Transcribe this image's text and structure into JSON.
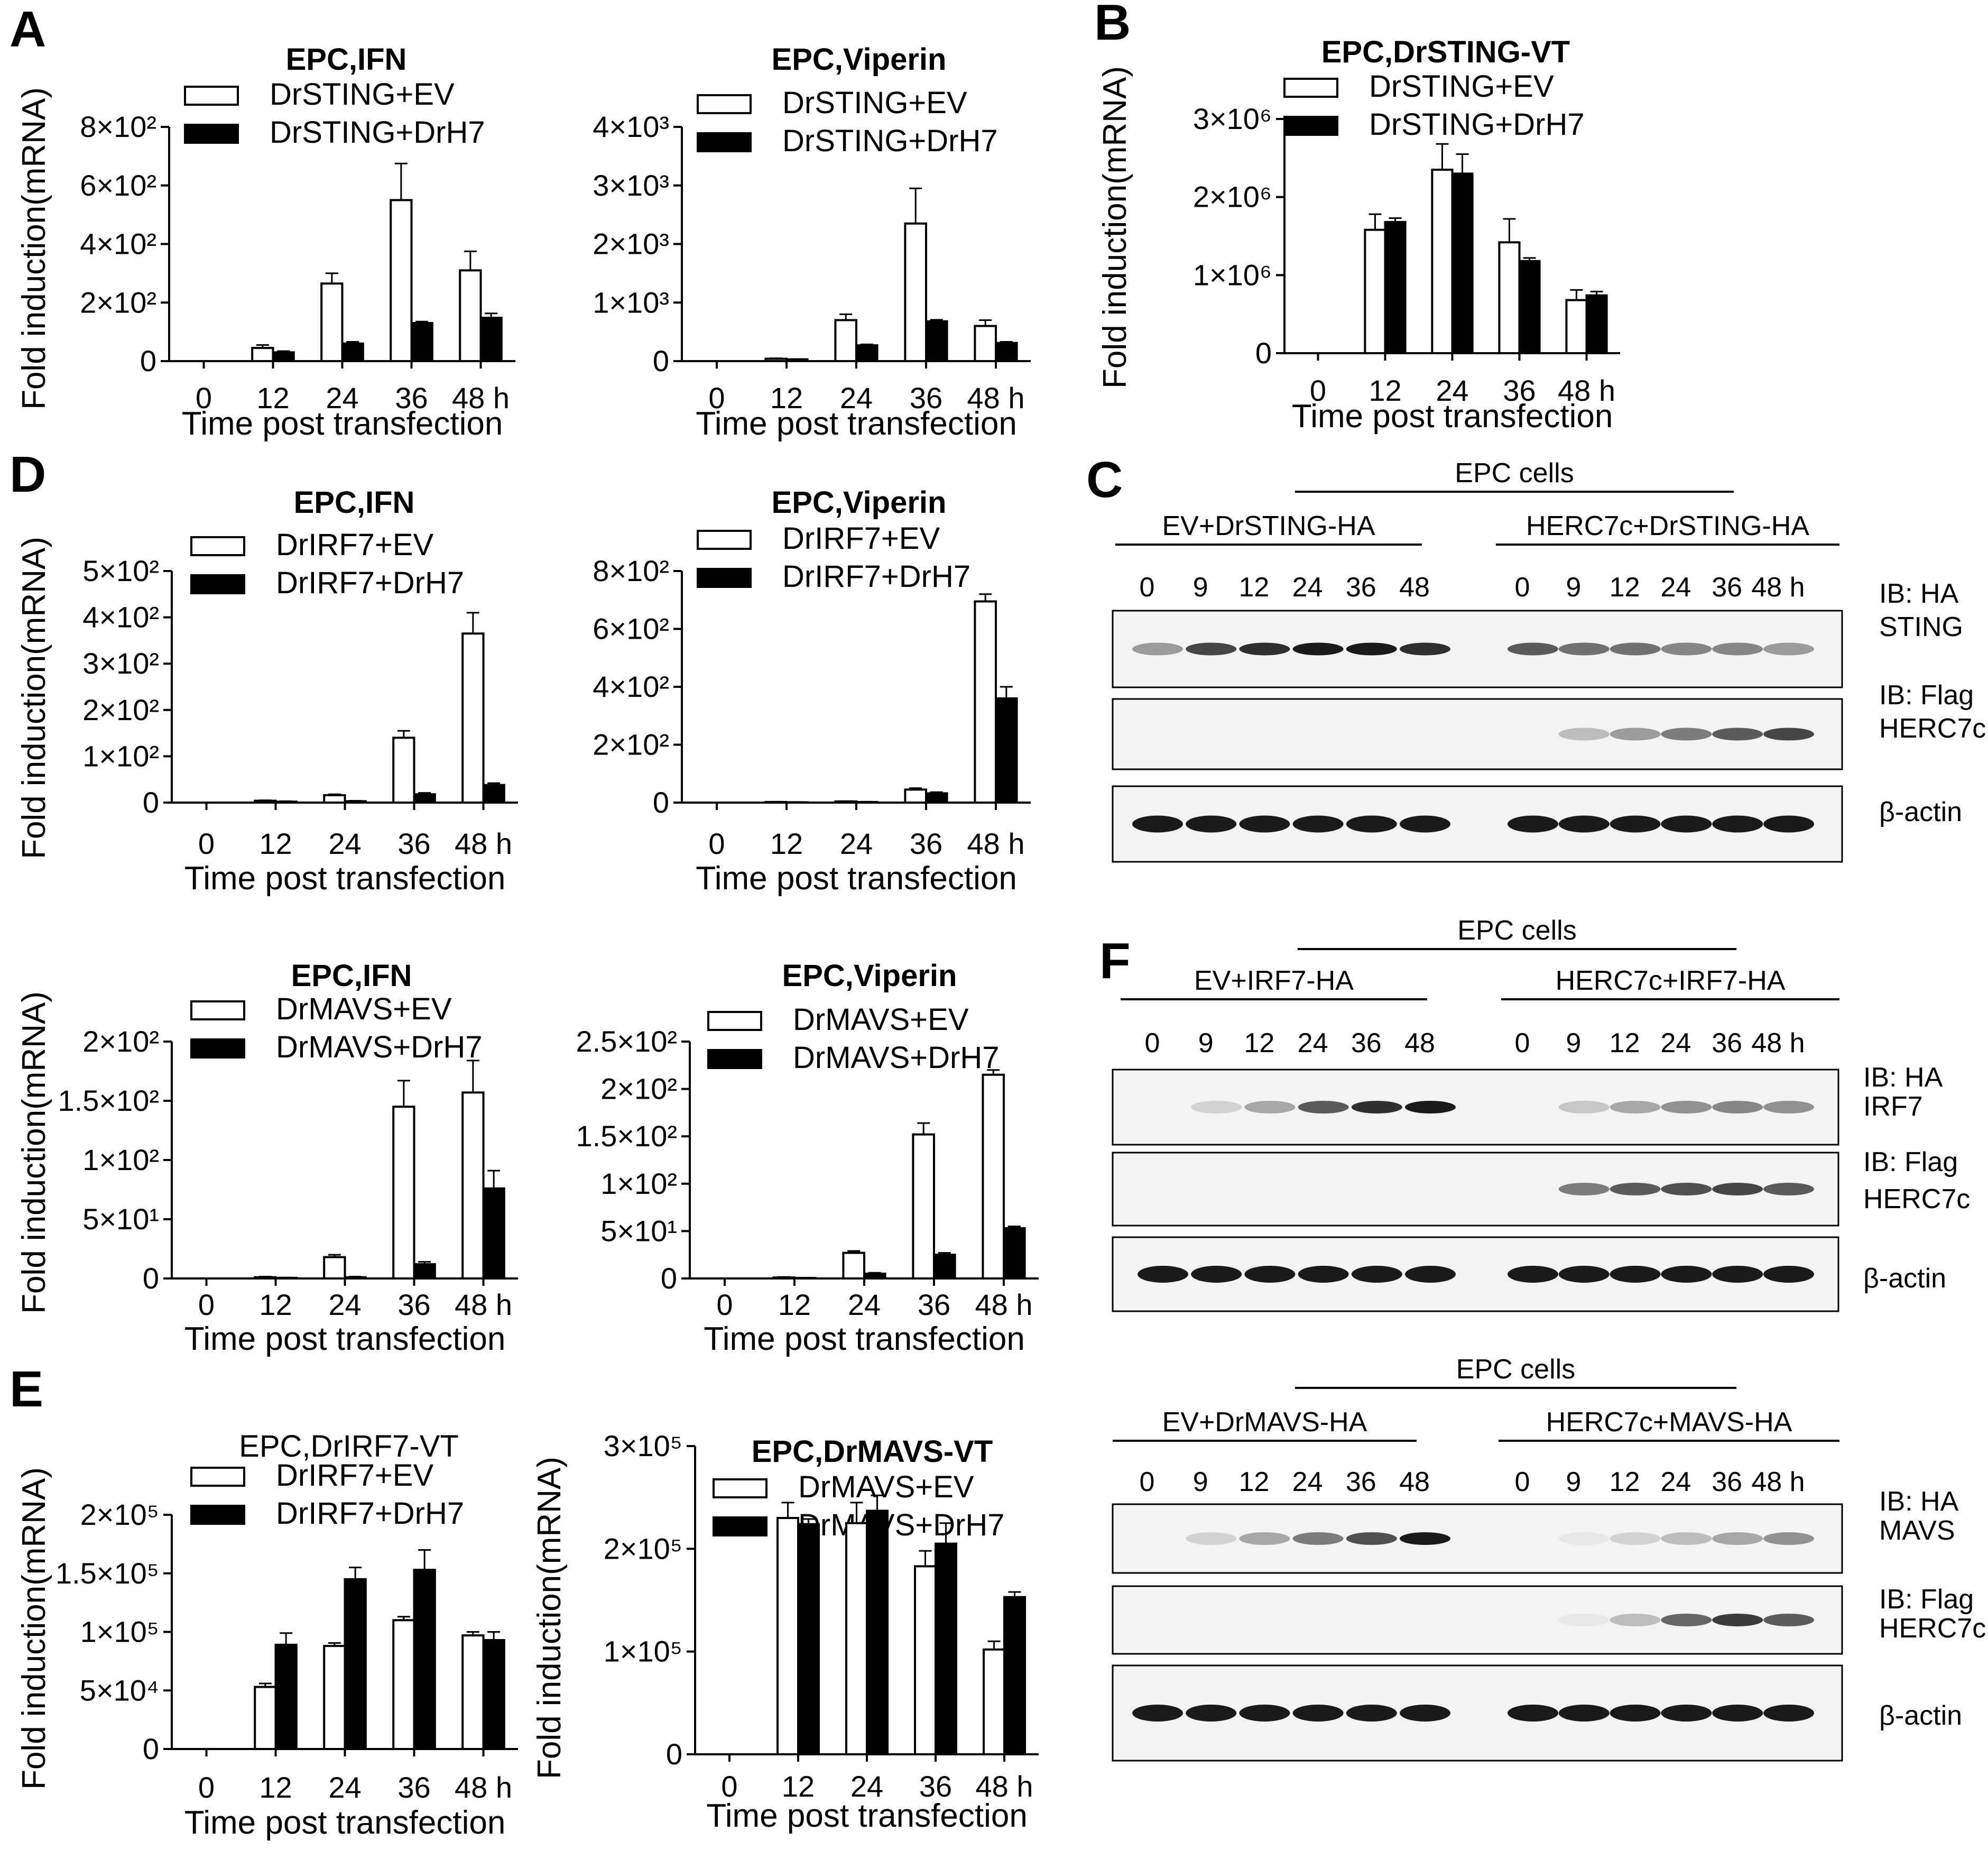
{
  "panel_labels": {
    "A": "A",
    "B": "B",
    "C": "C",
    "D": "D",
    "E": "E",
    "F": "F"
  },
  "colors": {
    "ev_bar": "#ffffff",
    "drh7_bar": "#000000",
    "blot_bg": "#f3f3f3",
    "band": "#1a1a1a"
  },
  "chart_data": [
    {
      "id": "A1",
      "type": "bar",
      "title": "EPC,IFN",
      "title_bold": true,
      "ylabel": "Fold induction(mRNA)",
      "xlabel": "Time post transfection",
      "categories": [
        "0",
        "12",
        "24",
        "36",
        "48 h"
      ],
      "ylim": [
        0,
        800
      ],
      "yticks": [
        0,
        200,
        400,
        600,
        800
      ],
      "ytick_labels": [
        "0",
        "2×10²",
        "4×10²",
        "6×10²",
        "8×10²"
      ],
      "series": [
        {
          "name": "DrSTING+EV",
          "values": [
            0,
            45,
            265,
            550,
            310
          ],
          "errors": [
            0,
            10,
            35,
            125,
            65
          ]
        },
        {
          "name": "DrSTING+DrH7",
          "values": [
            0,
            30,
            60,
            130,
            148
          ],
          "errors": [
            0,
            4,
            6,
            5,
            15
          ]
        }
      ]
    },
    {
      "id": "A2",
      "type": "bar",
      "title": "EPC,Viperin",
      "title_bold": true,
      "ylabel": "",
      "xlabel": "Time post transfection",
      "categories": [
        "0",
        "12",
        "24",
        "36",
        "48 h"
      ],
      "ylim": [
        0,
        4000
      ],
      "yticks": [
        0,
        1000,
        2000,
        3000,
        4000
      ],
      "ytick_labels": [
        "0",
        "1×10³",
        "2×10³",
        "3×10³",
        "4×10³"
      ],
      "series": [
        {
          "name": "DrSTING+EV",
          "values": [
            0,
            40,
            700,
            2350,
            600
          ],
          "errors": [
            0,
            8,
            100,
            600,
            100
          ]
        },
        {
          "name": "DrSTING+DrH7",
          "values": [
            0,
            30,
            270,
            680,
            310
          ],
          "errors": [
            0,
            5,
            15,
            25,
            20
          ]
        }
      ]
    },
    {
      "id": "B",
      "type": "bar",
      "title": "EPC,DrSTING-VT",
      "title_bold": true,
      "ylabel": "Fold induction(mRNA)",
      "xlabel": "Time post transfection",
      "categories": [
        "0",
        "12",
        "24",
        "36",
        "48 h"
      ],
      "ylim": [
        0,
        3000000
      ],
      "yticks": [
        0,
        1000000,
        2000000,
        3000000
      ],
      "ytick_labels": [
        "0",
        "1×10⁶",
        "2×10⁶",
        "3×10⁶"
      ],
      "series": [
        {
          "name": "DrSTING+EV",
          "values": [
            0,
            1580000,
            2350000,
            1420000,
            680000
          ],
          "errors": [
            0,
            200000,
            330000,
            300000,
            130000
          ]
        },
        {
          "name": "DrSTING+DrH7",
          "values": [
            0,
            1680000,
            2300000,
            1180000,
            740000
          ],
          "errors": [
            0,
            50000,
            250000,
            40000,
            50000
          ]
        }
      ]
    },
    {
      "id": "D1",
      "type": "bar",
      "title": "EPC,IFN",
      "title_bold": true,
      "ylabel": "Fold induction(mRNA)",
      "xlabel": "Time post transfection",
      "categories": [
        "0",
        "12",
        "24",
        "36",
        "48 h"
      ],
      "ylim": [
        0,
        500
      ],
      "yticks": [
        0,
        100,
        200,
        300,
        400,
        500
      ],
      "ytick_labels": [
        "0",
        "1×10²",
        "2×10²",
        "3×10²",
        "4×10²",
        "5×10²"
      ],
      "series": [
        {
          "name": "DrIRF7+EV",
          "values": [
            0,
            4,
            16,
            140,
            365
          ],
          "errors": [
            0,
            1,
            2,
            15,
            45
          ]
        },
        {
          "name": "DrIRF7+DrH7",
          "values": [
            0,
            2,
            3,
            18,
            38
          ],
          "errors": [
            0,
            1,
            1,
            3,
            4
          ]
        }
      ]
    },
    {
      "id": "D2",
      "type": "bar",
      "title": "EPC,Viperin",
      "title_bold": true,
      "ylabel": "",
      "xlabel": "Time post transfection",
      "categories": [
        "0",
        "12",
        "24",
        "36",
        "48 h"
      ],
      "ylim": [
        0,
        800
      ],
      "yticks": [
        0,
        200,
        400,
        600,
        800
      ],
      "ytick_labels": [
        "0",
        "2×10²",
        "4×10²",
        "6×10²",
        "8×10²"
      ],
      "series": [
        {
          "name": "DrIRF7+EV",
          "values": [
            0,
            2,
            4,
            45,
            695
          ],
          "errors": [
            0,
            1,
            1,
            5,
            25
          ]
        },
        {
          "name": "DrIRF7+DrH7",
          "values": [
            0,
            1,
            2,
            32,
            360
          ],
          "errors": [
            0,
            1,
            1,
            4,
            40
          ]
        }
      ]
    },
    {
      "id": "D3",
      "type": "bar",
      "title": "EPC,IFN",
      "title_bold": true,
      "ylabel": "Fold induction(mRNA)",
      "xlabel": "Time post transfection",
      "categories": [
        "0",
        "12",
        "24",
        "36",
        "48 h"
      ],
      "ylim": [
        0,
        200
      ],
      "yticks": [
        0,
        50,
        100,
        150,
        200
      ],
      "ytick_labels": [
        "0",
        "5×10¹",
        "1×10²",
        "1.5×10²",
        "2×10²"
      ],
      "series": [
        {
          "name": "DrMAVS+EV",
          "values": [
            0,
            1,
            18,
            145,
            157
          ],
          "errors": [
            0,
            0.5,
            2,
            22,
            27
          ]
        },
        {
          "name": "DrMAVS+DrH7",
          "values": [
            0,
            0.5,
            1,
            12,
            76
          ],
          "errors": [
            0,
            0.3,
            0.5,
            2,
            15
          ]
        }
      ]
    },
    {
      "id": "D4",
      "type": "bar",
      "title": "EPC,Viperin",
      "title_bold": true,
      "ylabel": "",
      "xlabel": "Time post transfection",
      "categories": [
        "0",
        "12",
        "24",
        "36",
        "48 h"
      ],
      "ylim": [
        0,
        250
      ],
      "yticks": [
        0,
        50,
        100,
        150,
        200,
        250
      ],
      "ytick_labels": [
        "0",
        "5×10¹",
        "1×10²",
        "1.5×10²",
        "2×10²",
        "2.5×10²"
      ],
      "series": [
        {
          "name": "DrMAVS+EV",
          "values": [
            0,
            1,
            27,
            152,
            215
          ],
          "errors": [
            0,
            0.5,
            2,
            12,
            5
          ]
        },
        {
          "name": "DrMAVS+DrH7",
          "values": [
            0,
            0.5,
            5,
            25,
            53
          ],
          "errors": [
            0,
            0.3,
            1,
            2,
            2
          ]
        }
      ]
    },
    {
      "id": "E1",
      "type": "bar",
      "title": "EPC,DrIRF7-VT",
      "title_bold": false,
      "ylabel": "Fold induction(mRNA)",
      "xlabel": "Time post transfection",
      "categories": [
        "0",
        "12",
        "24",
        "36",
        "48 h"
      ],
      "ylim": [
        0,
        200000
      ],
      "yticks": [
        0,
        50000,
        100000,
        150000,
        200000
      ],
      "ytick_labels": [
        "0",
        "5×10⁴",
        "1×10⁵",
        "1.5×10⁵",
        "2×10⁵"
      ],
      "series": [
        {
          "name": "DrIRF7+EV",
          "values": [
            0,
            53000,
            88000,
            110000,
            97000
          ],
          "errors": [
            0,
            3000,
            2500,
            3000,
            3000
          ]
        },
        {
          "name": "DrIRF7+DrH7",
          "values": [
            0,
            89000,
            145000,
            153000,
            93000
          ],
          "errors": [
            0,
            10000,
            10000,
            17000,
            7000
          ]
        }
      ]
    },
    {
      "id": "E2",
      "type": "bar",
      "title": "EPC,DrMAVS-VT",
      "title_bold": true,
      "ylabel": "Fold induction(mRNA)",
      "xlabel": "Time post transfection",
      "categories": [
        "0",
        "12",
        "24",
        "36",
        "48 h"
      ],
      "ylim": [
        0,
        300000
      ],
      "yticks": [
        0,
        100000,
        200000,
        300000
      ],
      "ytick_labels": [
        "0",
        "1×10⁵",
        "2×10⁵",
        "3×10⁵"
      ],
      "series": [
        {
          "name": "DrMAVS+EV",
          "values": [
            0,
            230000,
            225000,
            183000,
            102000
          ],
          "errors": [
            0,
            15000,
            20000,
            15000,
            8000
          ]
        },
        {
          "name": "DrMAVS+DrH7",
          "values": [
            0,
            224000,
            237000,
            205000,
            153000
          ],
          "errors": [
            0,
            5000,
            15000,
            20000,
            5000
          ]
        }
      ]
    }
  ],
  "blots": [
    {
      "id": "C",
      "cells_label": "EPC cells",
      "group_left": "EV+DrSTING-HA",
      "group_right": "HERC7c+DrSTING-HA",
      "lanes": [
        "0",
        "9",
        "12",
        "24",
        "36",
        "48",
        "0",
        "9",
        "12",
        "24",
        "36",
        "48 h"
      ],
      "ib_labels": [
        "IB: HA",
        "IB: Flag"
      ],
      "band_labels": [
        "STING",
        "HERC7c",
        "β-actin"
      ]
    },
    {
      "id": "F1",
      "cells_label": "EPC cells",
      "group_left": "EV+IRF7-HA",
      "group_right": "HERC7c+IRF7-HA",
      "lanes": [
        "0",
        "9",
        "12",
        "24",
        "36",
        "48",
        "0",
        "9",
        "12",
        "24",
        "36",
        "48 h"
      ],
      "ib_labels": [
        "IB: HA",
        "IB: Flag"
      ],
      "band_labels": [
        "IRF7",
        "HERC7c",
        "β-actin"
      ]
    },
    {
      "id": "F2",
      "cells_label": "EPC cells",
      "group_left": "EV+DrMAVS-HA",
      "group_right": "HERC7c+MAVS-HA",
      "lanes": [
        "0",
        "9",
        "12",
        "24",
        "36",
        "48",
        "0",
        "9",
        "12",
        "24",
        "36",
        "48 h"
      ],
      "ib_labels": [
        "IB: HA",
        "IB: Flag"
      ],
      "band_labels": [
        "MAVS",
        "HERC7c",
        "β-actin"
      ]
    }
  ]
}
